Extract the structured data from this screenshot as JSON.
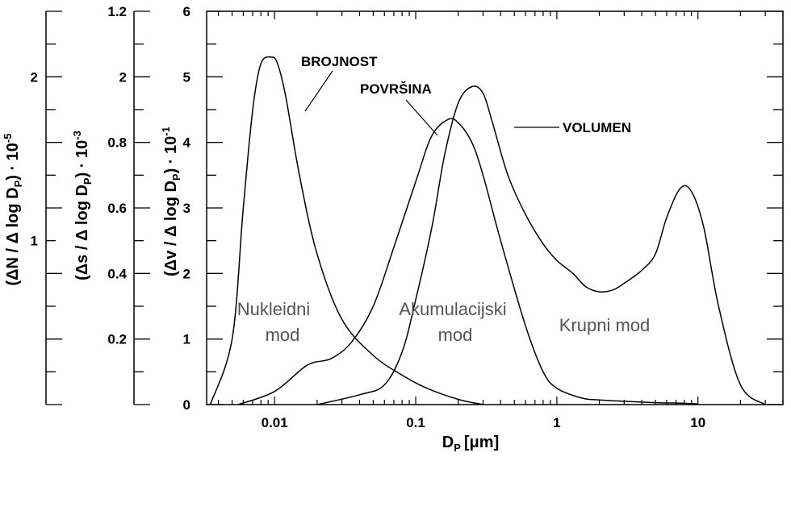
{
  "chart_data": {
    "type": "line",
    "x_scale": "log",
    "xlabel": "D",
    "xlabel_sub": "P",
    "xlabel_unit": "[μm]",
    "xlim": [
      0.0033,
      40
    ],
    "x_ticks": [
      {
        "value": 0.01,
        "label": "0.01"
      },
      {
        "value": 0.1,
        "label": "0.1"
      },
      {
        "value": 1,
        "label": "1"
      },
      {
        "value": 10,
        "label": "10"
      }
    ],
    "y_axes": [
      {
        "id": "volume",
        "label_parts": [
          "(Δv / Δ log D",
          "P",
          ") · 10",
          "-1"
        ],
        "ylim": [
          0,
          6
        ],
        "ticks": [
          {
            "value": 0,
            "label": "0"
          },
          {
            "value": 1,
            "label": "1"
          },
          {
            "value": 2,
            "label": "2"
          },
          {
            "value": 3,
            "label": "3"
          },
          {
            "value": 4,
            "label": "4"
          },
          {
            "value": 5,
            "label": "5"
          },
          {
            "value": 6,
            "label": "6"
          }
        ]
      },
      {
        "id": "surface",
        "label_parts": [
          "(Δs / Δ log D",
          "P",
          ") · 10",
          "-3"
        ],
        "ylim": [
          0,
          1.2
        ],
        "ticks": [
          {
            "value": 0.2,
            "label": "0.2"
          },
          {
            "value": 0.4,
            "label": "0.4"
          },
          {
            "value": 0.6,
            "label": "0.6"
          },
          {
            "value": 0.8,
            "label": "0.8"
          },
          {
            "value": 1.2,
            "label": "1.2"
          }
        ],
        "extra_labels": [
          {
            "value": 1.0,
            "label": "2"
          }
        ]
      },
      {
        "id": "number",
        "label_parts": [
          "(ΔN / Δ log D",
          "P",
          ") · 10",
          "-5"
        ],
        "ylim": [
          0,
          2.4
        ],
        "ticks": [
          {
            "value": 1,
            "label": "1"
          },
          {
            "value": 2,
            "label": "2"
          }
        ]
      }
    ],
    "series": [
      {
        "name": "BROJNOST",
        "x": [
          0.0035,
          0.005,
          0.006,
          0.007,
          0.008,
          0.0095,
          0.0105,
          0.012,
          0.015,
          0.02,
          0.03,
          0.05,
          0.08,
          0.12,
          0.2,
          0.3
        ],
        "y": [
          0,
          1.0,
          3.0,
          4.5,
          5.2,
          5.3,
          5.2,
          4.7,
          3.5,
          2.3,
          1.3,
          0.75,
          0.45,
          0.25,
          0.08,
          0
        ]
      },
      {
        "name": "POVRŠINA",
        "x": [
          0.0055,
          0.01,
          0.017,
          0.025,
          0.035,
          0.05,
          0.07,
          0.1,
          0.13,
          0.17,
          0.2,
          0.25,
          0.3,
          0.4,
          0.6,
          0.8,
          1.0,
          1.5,
          2.0,
          3.0,
          5.0,
          8.0,
          10.0
        ],
        "y": [
          0,
          0.2,
          0.6,
          0.7,
          0.95,
          1.5,
          2.4,
          3.4,
          4.1,
          4.35,
          4.3,
          4.0,
          3.5,
          2.5,
          1.2,
          0.5,
          0.25,
          0.1,
          0.07,
          0.05,
          0.03,
          0.02,
          0.01
        ]
      },
      {
        "name": "VOLUMEN",
        "x": [
          0.02,
          0.04,
          0.06,
          0.08,
          0.1,
          0.13,
          0.16,
          0.2,
          0.25,
          0.3,
          0.35,
          0.45,
          0.6,
          0.8,
          1.0,
          1.3,
          1.6,
          2.0,
          2.5,
          3.0,
          4.0,
          5.0,
          6.0,
          7.5,
          9.0,
          11.0,
          14.0,
          20.0,
          30.0
        ],
        "y": [
          0,
          0.15,
          0.3,
          0.8,
          1.6,
          2.7,
          3.8,
          4.6,
          4.85,
          4.75,
          4.3,
          3.5,
          2.9,
          2.45,
          2.2,
          2.0,
          1.8,
          1.72,
          1.75,
          1.85,
          2.05,
          2.3,
          2.85,
          3.3,
          3.25,
          2.7,
          1.5,
          0.3,
          0
        ]
      }
    ],
    "annotations": {
      "brojnost": "BROJNOST",
      "povrsina": "POVRŠINA",
      "volumen": "VOLUMEN",
      "nukleidni_1": "Nukleidni",
      "nukleidni_2": "mod",
      "akumulacijski_1": "Akumulacijski",
      "akumulacijski_2": "mod",
      "krupni": "Krupni mod"
    }
  }
}
